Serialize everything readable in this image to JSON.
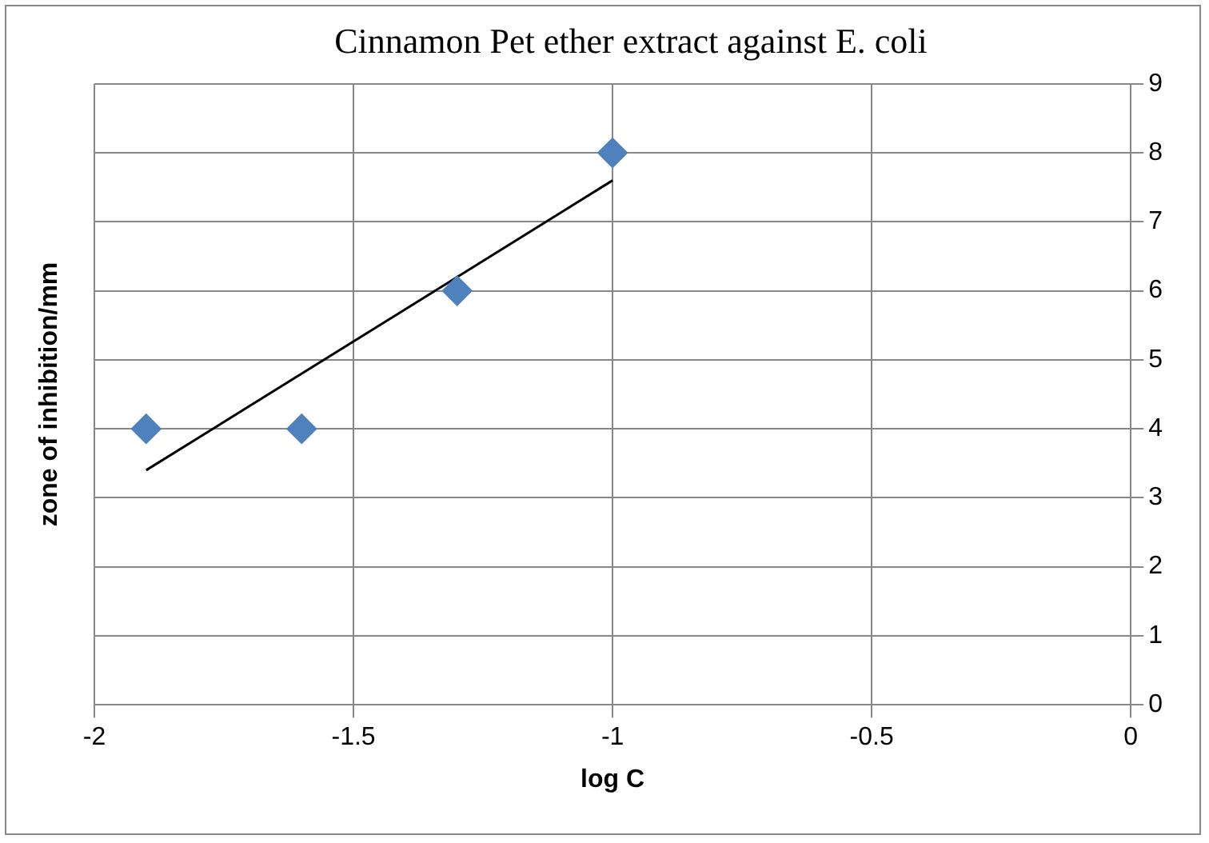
{
  "chart_data": {
    "type": "scatter",
    "title": "Cinnamon Pet ether extract against E. coli",
    "xlabel": "log C",
    "ylabel": "zone of inhibition/mm",
    "xlim": [
      -2,
      0
    ],
    "xticks": [
      -2,
      -1.5,
      -1,
      -0.5,
      0
    ],
    "ylim": [
      0,
      9
    ],
    "yticks": [
      0,
      1,
      2,
      3,
      4,
      5,
      6,
      7,
      8,
      9
    ],
    "grid": true,
    "legend": false,
    "marker": "diamond",
    "series": [
      {
        "color": "#4f81bd",
        "x": [
          -1.9,
          -1.6,
          -1.3,
          -1
        ],
        "values": [
          4,
          4,
          6,
          8
        ]
      },
      {
        "type": "line",
        "color": "#000000",
        "x": [
          -1.9,
          -1
        ],
        "values": [
          3.4,
          7.6
        ],
        "marker": "none"
      }
    ]
  }
}
